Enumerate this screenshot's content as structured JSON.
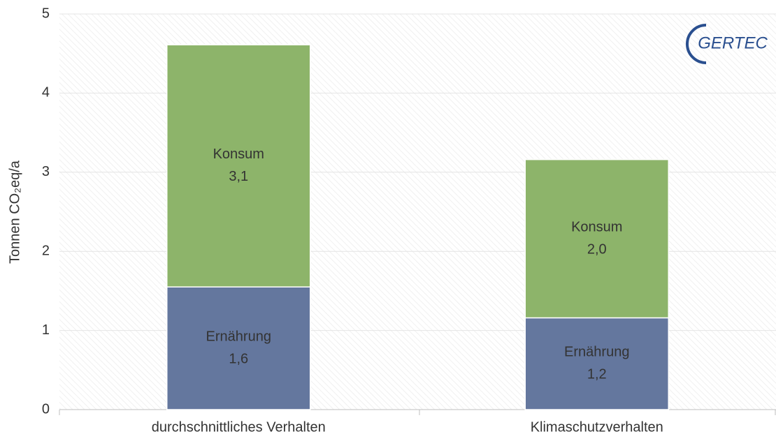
{
  "chart_data": {
    "type": "stacked_bar",
    "logo": "GERTEC",
    "y_label": "Tonnen CO₂eq/a",
    "categories": [
      "durchschnittliches Verhalten",
      "Klimaschutzverhalten"
    ],
    "series": [
      {
        "name": "Ernährung",
        "color": "#64779e",
        "values": [
          1.55,
          1.16
        ],
        "value_labels": [
          "1,6",
          "1,2"
        ]
      },
      {
        "name": "Konsum",
        "color": "#8db46a",
        "values": [
          3.06,
          2.0
        ],
        "value_labels": [
          "3,1",
          "2,0"
        ]
      }
    ],
    "ylim": [
      0,
      5
    ],
    "yticks": [
      0,
      1,
      2,
      3,
      4,
      5
    ],
    "grid": true
  }
}
